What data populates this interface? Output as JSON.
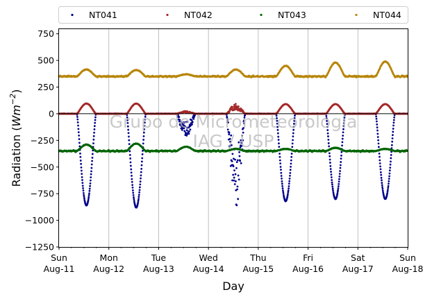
{
  "chart_data": {
    "type": "scatter",
    "xlabel": "Day",
    "ylabel_main": "Radiation (",
    "ylabel_unit_base": "Wm",
    "ylabel_unit_exp": "−2",
    "ylabel_close": ")",
    "ylim": [
      -1250,
      800
    ],
    "yticks": [
      750,
      500,
      250,
      0,
      -250,
      -500,
      -750,
      -1000,
      -1250
    ],
    "ytick_labels": [
      "750",
      "500",
      "250",
      "0",
      "−250",
      "−500",
      "−750",
      "−1000",
      "−1250"
    ],
    "xlim": [
      "2019-08-11",
      "2019-08-18"
    ],
    "xticks": [
      {
        "day": "Sun",
        "date": "Aug-11"
      },
      {
        "day": "Mon",
        "date": "Aug-12"
      },
      {
        "day": "Tue",
        "date": "Aug-13"
      },
      {
        "day": "Wed",
        "date": "Aug-14"
      },
      {
        "day": "Thu",
        "date": "Aug-15"
      },
      {
        "day": "Fri",
        "date": "Aug-16"
      },
      {
        "day": "Sat",
        "date": "Aug-17"
      },
      {
        "day": "Sun",
        "date": "Aug-18"
      }
    ],
    "grid": "vertical",
    "zero_line": true,
    "legend_position": "top",
    "watermark": [
      "Grupo de Micrometeorologia",
      "IAG / USP"
    ],
    "series": [
      {
        "name": "NT041",
        "color": "#00008b",
        "baseline": 0,
        "daily_peak": [
          -860,
          -880,
          -220,
          -880,
          -820,
          -800,
          -800
        ],
        "cloudy_days": [
          2,
          3
        ]
      },
      {
        "name": "NT042",
        "color": "#a52a2a",
        "baseline": 0,
        "daily_peak": [
          95,
          95,
          25,
          95,
          90,
          90,
          90
        ],
        "cloudy_days": [
          2,
          3
        ]
      },
      {
        "name": "NT043",
        "color": "#006400",
        "baseline": -350,
        "daily_peak": [
          -290,
          -280,
          -310,
          -330,
          -330,
          -320,
          -330
        ],
        "cloudy_days": []
      },
      {
        "name": "NT044",
        "color": "#b8860b",
        "baseline": 350,
        "daily_peak": [
          415,
          410,
          370,
          415,
          450,
          480,
          490
        ],
        "cloudy_days": []
      }
    ]
  }
}
